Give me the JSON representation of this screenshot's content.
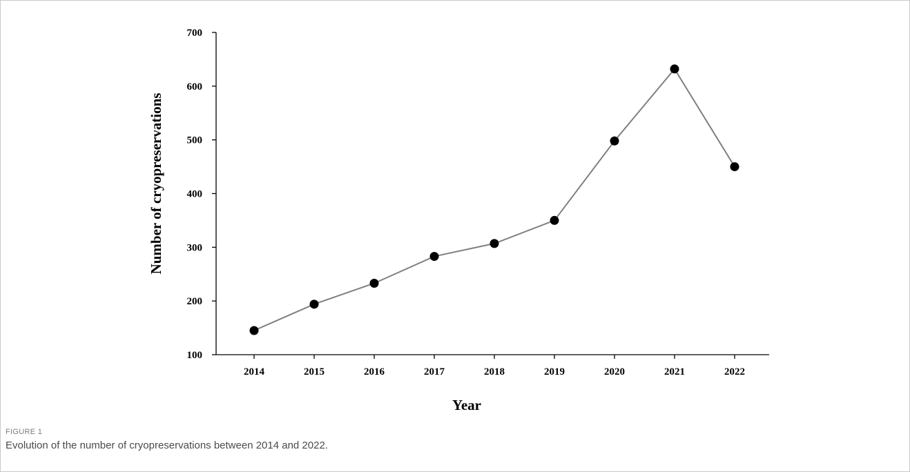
{
  "chart_data": {
    "type": "line",
    "x": [
      2014,
      2015,
      2016,
      2017,
      2018,
      2019,
      2020,
      2021,
      2022
    ],
    "categories": [
      "2014",
      "2015",
      "2016",
      "2017",
      "2018",
      "2019",
      "2020",
      "2021",
      "2022"
    ],
    "series": [
      {
        "values": [
          145,
          194,
          233,
          283,
          307,
          350,
          498,
          632,
          450
        ]
      }
    ],
    "xlabel": "Year",
    "ylabel": "Number of cryopreservations",
    "ylim": [
      100,
      700
    ],
    "yticks": [
      100,
      200,
      300,
      400,
      500,
      600,
      700
    ],
    "line_color": "#7f7f7f",
    "marker_color": "#000000",
    "grid": false
  },
  "figure": {
    "label": "FIGURE 1",
    "caption": "Evolution of the number of cryopreservations between 2014 and 2022."
  }
}
